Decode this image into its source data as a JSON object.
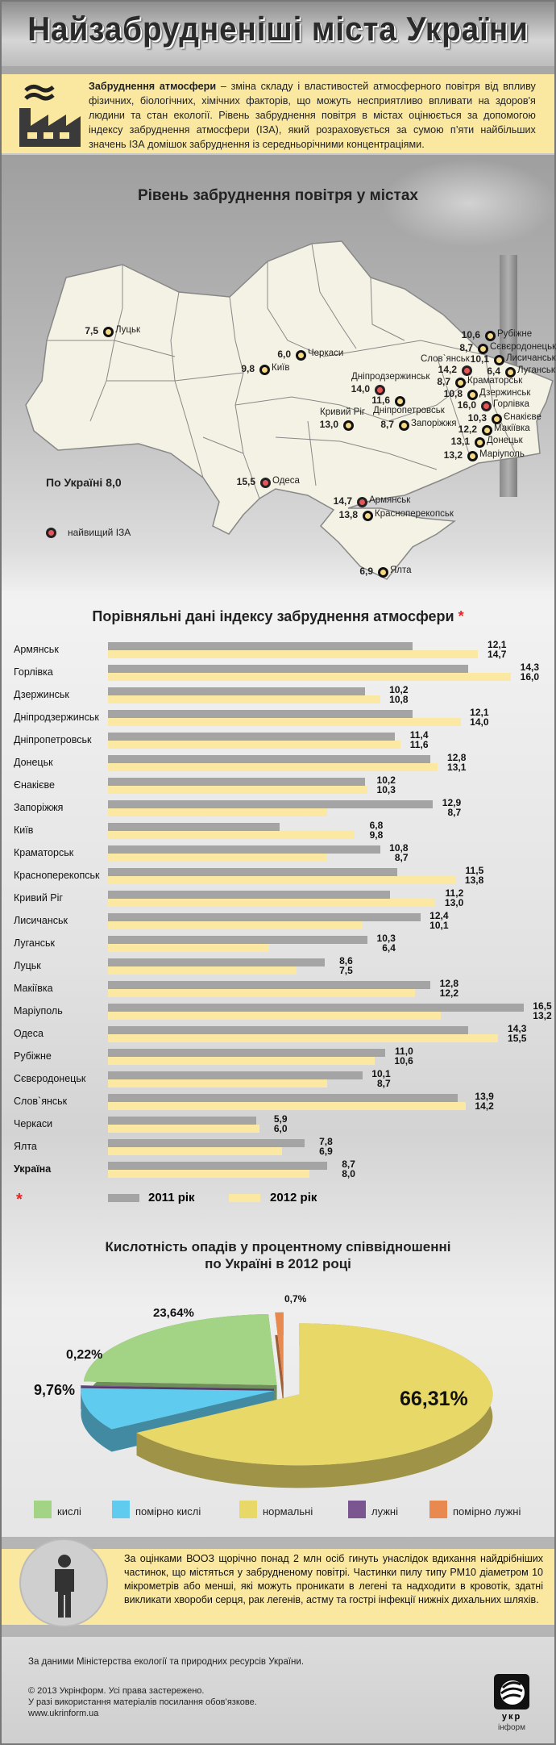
{
  "header": {
    "title": "Найзабрудненіші міста України"
  },
  "intro": {
    "term": "Забруднення атмосфери",
    "text": " – зміна складу і властивостей атмосферного повітря від впливу фізичних, біологічних, хімічних факторів, що можуть несприятливо впливати на здоров'я людини та стан екології. Рівень забруднення повітря в містах оцінюється за допомогою індексу забруднення атмосфери (ІЗА), який розраховується за сумою п’яти найбільших значень ІЗА домішок забруднення із середньорічними концентраціями."
  },
  "map": {
    "title": "Рівень забруднення повітря у містах",
    "ukraine_total": "По Україні 8,0",
    "legend_highest": "найвищий ІЗА",
    "colors": {
      "normal": "#f5d983",
      "highest": "#e8545a"
    },
    "cities": [
      {
        "name": "Луцьк",
        "value": "7,5",
        "highest": false
      },
      {
        "name": "Київ",
        "value": "9,8",
        "highest": false
      },
      {
        "name": "Черкаси",
        "value": "6,0",
        "highest": false
      },
      {
        "name": "Рубіжне",
        "value": "10,6",
        "highest": false
      },
      {
        "name": "Сєвєродонецьк",
        "value": "8,7",
        "highest": false
      },
      {
        "name": "Лисичанськ",
        "value": "10,1",
        "highest": false
      },
      {
        "name": "Слов`янськ",
        "value": "14,2",
        "highest": true
      },
      {
        "name": "Луганськ",
        "value": "6,4",
        "highest": false
      },
      {
        "name": "Краматорськ",
        "value": "8,7",
        "highest": false
      },
      {
        "name": "Дзержинськ",
        "value": "10,8",
        "highest": false
      },
      {
        "name": "Горлівка",
        "value": "16,0",
        "highest": true
      },
      {
        "name": "Єнакієве",
        "value": "10,3",
        "highest": false
      },
      {
        "name": "Макіївка",
        "value": "12,2",
        "highest": false
      },
      {
        "name": "Донецьк",
        "value": "13,1",
        "highest": false
      },
      {
        "name": "Маріуполь",
        "value": "13,2",
        "highest": false
      },
      {
        "name": "Дніпродзержинськ",
        "value": "14,0",
        "highest": true
      },
      {
        "name": "Дніпропетровськ",
        "value": "11,6",
        "highest": false
      },
      {
        "name": "Кривий Ріг",
        "value": "13,0",
        "highest": false
      },
      {
        "name": "Запоріжжя",
        "value": "8,7",
        "highest": false
      },
      {
        "name": "Одеса",
        "value": "15,5",
        "highest": true
      },
      {
        "name": "Армянськ",
        "value": "14,7",
        "highest": true
      },
      {
        "name": "Красноперекопськ",
        "value": "13,8",
        "highest": false
      },
      {
        "name": "Ялта",
        "value": "6,9",
        "highest": false
      }
    ]
  },
  "chart_data": [
    {
      "type": "bar",
      "title": "Порівняльні дані індексу забруднення атмосфери",
      "title_mark": "*",
      "orientation": "horizontal",
      "categories": [
        "Армянськ",
        "Горлівка",
        "Дзержинськ",
        "Дніпродзержинськ",
        "Дніпропетровськ",
        "Донецьк",
        "Єнакієве",
        "Запоріжжя",
        "Київ",
        "Краматорськ",
        "Красноперекопськ",
        "Кривий Ріг",
        "Лисичанськ",
        "Луганськ",
        "Луцьк",
        "Макіївка",
        "Маріуполь",
        "Одеса",
        "Рубіжне",
        "Сєвєродонецьк",
        "Слов`янськ",
        "Черкаси",
        "Ялта",
        "Україна"
      ],
      "series": [
        {
          "name": "2011 рік",
          "color": "#a4a4a4",
          "values": [
            12.1,
            14.3,
            10.2,
            12.1,
            11.4,
            12.8,
            10.2,
            12.9,
            6.8,
            10.8,
            11.5,
            11.2,
            12.4,
            10.3,
            8.6,
            12.8,
            16.5,
            14.3,
            11.0,
            10.1,
            13.9,
            5.9,
            7.8,
            8.7
          ]
        },
        {
          "name": "2012 рік",
          "color": "#fbe9a3",
          "values": [
            14.7,
            16.0,
            10.8,
            14.0,
            11.6,
            13.1,
            10.3,
            8.7,
            9.8,
            8.7,
            13.8,
            13.0,
            10.1,
            6.4,
            7.5,
            12.2,
            13.2,
            15.5,
            10.6,
            8.7,
            14.2,
            6.0,
            6.9,
            8.0
          ]
        }
      ],
      "legend_mark": "*",
      "xlim": [
        0,
        16.5
      ],
      "legend": "bottom"
    },
    {
      "type": "pie",
      "title": [
        "Кислотність опадів у процентному співвідношенні",
        "по Україні в 2012 році"
      ],
      "slices": [
        {
          "label": "нормальні",
          "value": 66.31,
          "text": "66,31%",
          "color": "#e8d867"
        },
        {
          "label": "помірно кислі",
          "value": 9.76,
          "text": "9,76%",
          "color": "#5fcbee"
        },
        {
          "label": "лужні",
          "value": 0.22,
          "text": "0,22%",
          "color": "#7b5590"
        },
        {
          "label": "кислі",
          "value": 23.64,
          "text": "23,64%",
          "color": "#a3d384"
        },
        {
          "label": "помірно лужні",
          "value": 0.7,
          "text": "0,7%",
          "color": "#e88a50"
        }
      ],
      "legend_order": [
        "кислі",
        "помірно кислі",
        "нормальні",
        "лужні",
        "помірно лужні"
      ],
      "legend": "bottom"
    }
  ],
  "who_note": "За оцінками ВООЗ щорічно понад 2 млн осіб гинуть унаслідок вдихання найдрібніших частинок, що містяться у забрудненому повітрі. Частинки пилу типу PM10 діаметром 10 мікрометрів або менші, які можуть проникати в легені та надходити в кровотік, здатні викликати хвороби серця, рак легенів, астму та гострі інфекції нижніх дихальних шляхів.",
  "footer": {
    "source": "За даними Міністерства екології та природних ресурсів України.",
    "copyright": "© 2013 Укрінформ. Усі права застережено.",
    "usage": "У разі використання матеріалів посилання обов’язкове.",
    "url": "www.ukrinform.ua",
    "logo_text": [
      "укр",
      "інформ"
    ]
  }
}
